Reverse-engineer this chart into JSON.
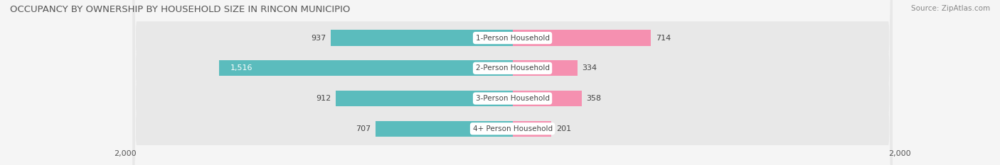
{
  "title": "OCCUPANCY BY OWNERSHIP BY HOUSEHOLD SIZE IN RINCON MUNICIPIO",
  "source": "Source: ZipAtlas.com",
  "categories": [
    "1-Person Household",
    "2-Person Household",
    "3-Person Household",
    "4+ Person Household"
  ],
  "owner_values": [
    937,
    1516,
    912,
    707
  ],
  "renter_values": [
    714,
    334,
    358,
    201
  ],
  "owner_color": "#5bbcbd",
  "renter_color": "#f590b0",
  "row_bg_color": "#e8e8e8",
  "axis_max": 2000,
  "title_fontsize": 9.5,
  "source_fontsize": 7.5,
  "bar_label_fontsize": 8,
  "cat_label_fontsize": 7.5,
  "axis_label_fontsize": 8,
  "background_color": "#f5f5f5",
  "legend_fontsize": 8
}
